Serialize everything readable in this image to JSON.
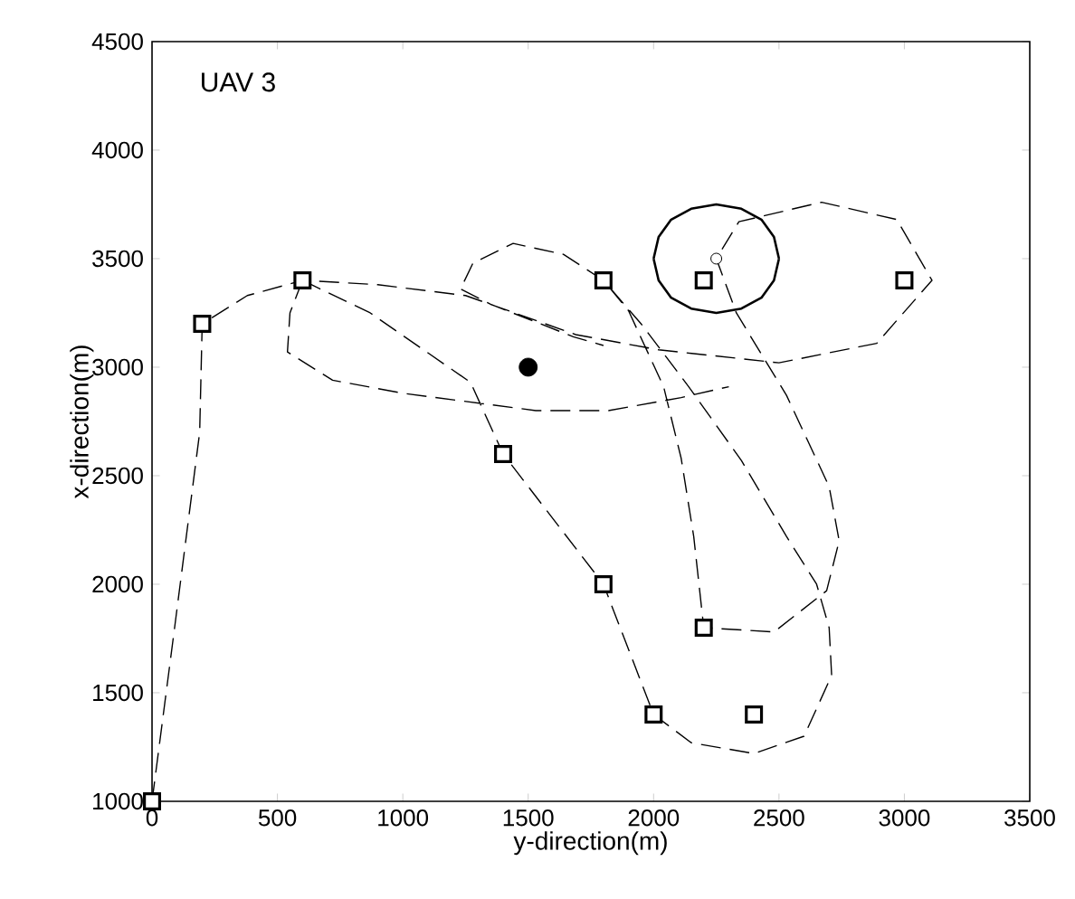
{
  "chart_data": {
    "type": "line",
    "xlabel": "y-direction(m)",
    "ylabel": "x-direction(m)",
    "annotations": [
      "UAV 3"
    ],
    "xlim": [
      0,
      3500
    ],
    "ylim": [
      1000,
      4500
    ],
    "xticks": [
      0,
      500,
      1000,
      1500,
      2000,
      2500,
      3000,
      3500
    ],
    "yticks": [
      1000,
      1500,
      2000,
      2500,
      3000,
      3500,
      4000,
      4500
    ],
    "grid": false,
    "series": [
      {
        "line_style": "dashed",
        "color": "#000000",
        "x": [
          0,
          90,
          190,
          200,
          380,
          600,
          900,
          1250,
          1690,
          2020,
          2500,
          2890,
          3110,
          2970,
          2670,
          2340,
          2250,
          2330,
          2530,
          2700,
          2740,
          2690,
          2480,
          2200,
          2160,
          2110,
          2040,
          1900,
          1800,
          1640,
          1440,
          1280,
          1230,
          1350,
          1680,
          1800,
          null,
          600,
          550,
          540,
          720,
          1000,
          1530,
          1820,
          2110,
          2300,
          null,
          600,
          870,
          1270,
          1400,
          1800,
          2000,
          2150,
          2400,
          2600,
          2710,
          2700,
          2650,
          2530,
          2350,
          2140,
          1950,
          1800
        ],
        "values": [
          1000,
          1800,
          2700,
          3200,
          3330,
          3400,
          3380,
          3330,
          3150,
          3080,
          3020,
          3110,
          3400,
          3680,
          3760,
          3670,
          3500,
          3250,
          2870,
          2450,
          2200,
          1970,
          1780,
          1800,
          2220,
          2580,
          2910,
          3260,
          3400,
          3520,
          3570,
          3480,
          3360,
          3290,
          3140,
          3100,
          null,
          3400,
          3250,
          3070,
          2940,
          2880,
          2800,
          2800,
          2860,
          2910,
          null,
          3400,
          3250,
          2930,
          2600,
          2000,
          1400,
          1270,
          1220,
          1300,
          1580,
          1800,
          2000,
          2220,
          2570,
          2910,
          3200,
          3400
        ]
      },
      {
        "type": "line",
        "line_style": "solid",
        "color": "#000000",
        "x": [
          2500,
          2480,
          2430,
          2350,
          2250,
          2150,
          2070,
          2020,
          2000,
          null,
          2000,
          2020,
          2070,
          2150,
          2250,
          2350,
          2430,
          2480,
          2500
        ],
        "values": [
          3500,
          3600,
          3680,
          3730,
          3750,
          3730,
          3680,
          3600,
          3500,
          null,
          3500,
          3400,
          3320,
          3270,
          3250,
          3270,
          3320,
          3400,
          3500
        ]
      },
      {
        "type": "scatter",
        "marker": "square",
        "color": "#000000",
        "x": [
          0,
          200,
          600,
          1400,
          1800,
          1800,
          2200,
          2200,
          2000,
          2400,
          3000
        ],
        "values": [
          1000,
          3200,
          3400,
          2600,
          3400,
          2000,
          3400,
          1800,
          1400,
          1400,
          3400
        ]
      },
      {
        "type": "scatter",
        "marker": "circle",
        "color": "#000000",
        "x": [
          1500
        ],
        "values": [
          3000
        ]
      },
      {
        "type": "scatter",
        "color": "#000000",
        "x": [
          2250
        ],
        "values": [
          3500
        ]
      }
    ]
  }
}
